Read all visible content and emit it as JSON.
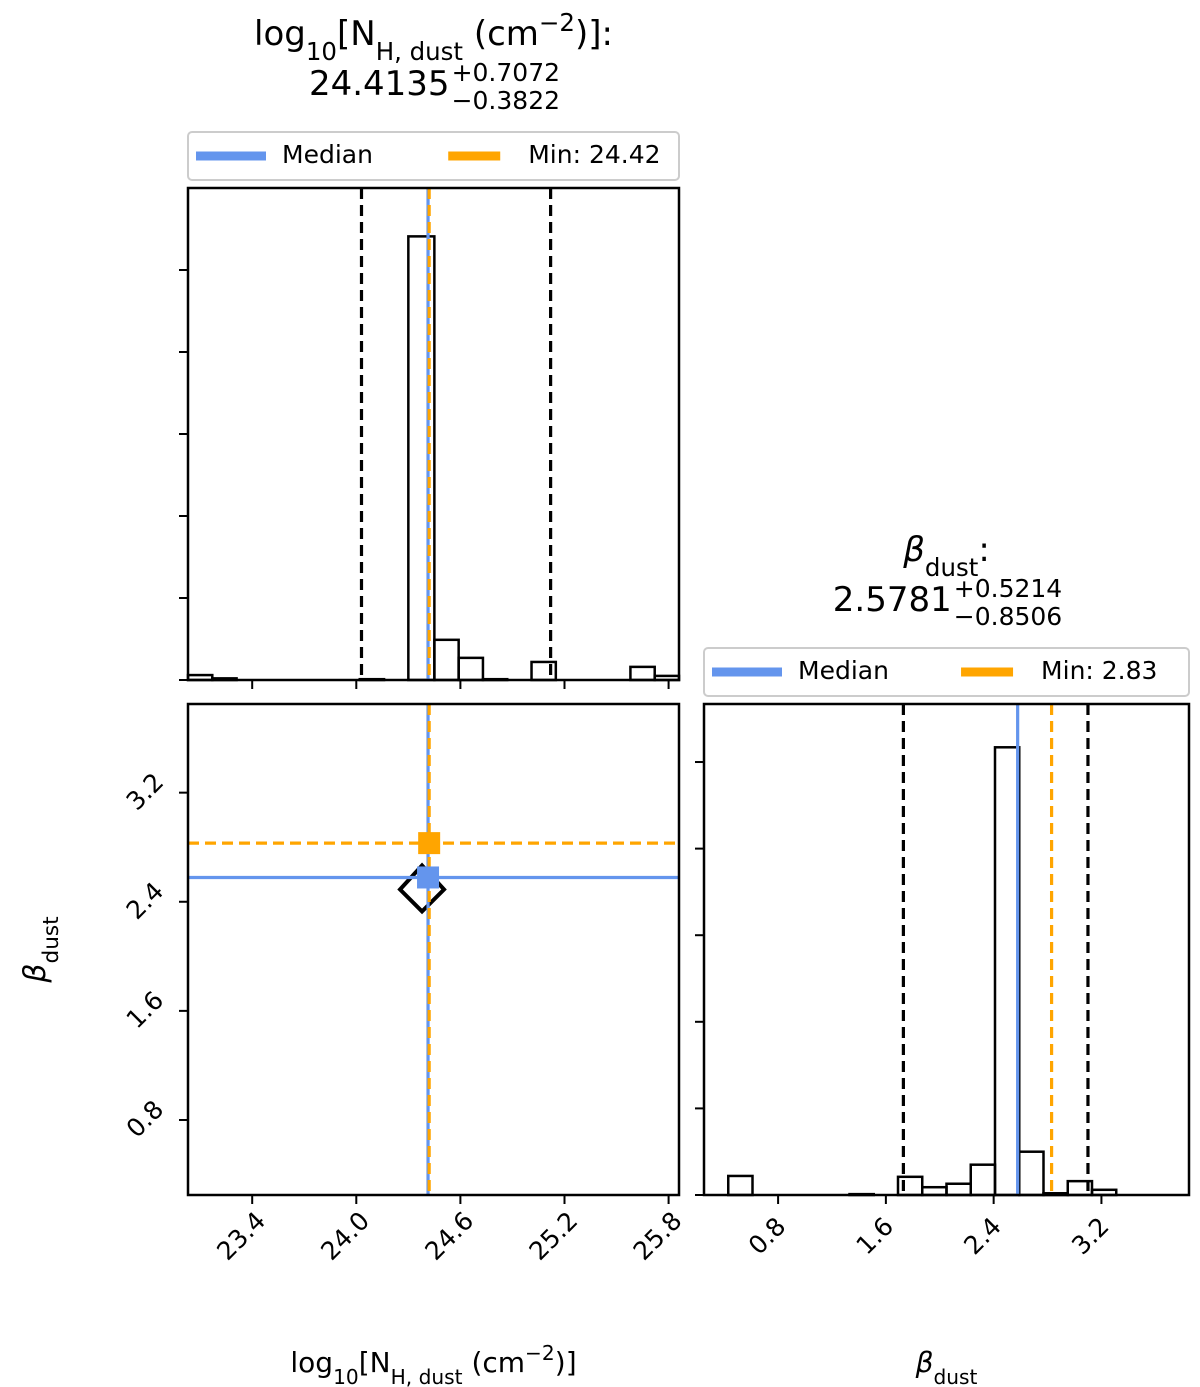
{
  "chart_data": [
    {
      "type": "histogram",
      "title": [
        {
          "text": "log"
        },
        {
          "text": "10",
          "style": "sub"
        },
        {
          "text": "[N"
        },
        {
          "text": "H, dust",
          "style": "sub"
        },
        {
          "text": " (cm"
        },
        {
          "text": "−2",
          "style": "sup"
        },
        {
          "text": ")]:"
        }
      ],
      "title_value": "24.4135",
      "title_plus": "+0.7072",
      "title_minus": "−0.3822",
      "bins": [
        23.03,
        23.17,
        23.31,
        23.45,
        23.6,
        23.74,
        23.88,
        24.02,
        24.16,
        24.3,
        24.45,
        24.59,
        24.73,
        24.87,
        25.01,
        25.15,
        25.29,
        25.44,
        25.58,
        25.72,
        25.86
      ],
      "values": [
        0.06,
        0.02,
        0,
        0,
        0,
        0,
        0,
        0.01,
        0,
        5.41,
        0.49,
        0.27,
        0.01,
        0,
        0.22,
        0,
        0,
        0,
        0.16,
        0.05
      ],
      "color": "#000000",
      "xlim": [
        23.03,
        25.86
      ],
      "xticks": [
        23.4,
        {
          "value": 24,
          "label": "24.0"
        },
        24.6,
        25.2,
        25.8
      ],
      "ylim": [
        0,
        6
      ],
      "yticks": [
        0,
        1,
        2,
        3,
        4,
        5
      ],
      "quantile_lines": [
        24.03,
        25.12
      ],
      "series": [
        {
          "name": "Median",
          "color": "#6495ED",
          "value": 24.4135
        },
        {
          "name": "Min: 24.42",
          "color": "#FFA500",
          "value": 24.42
        }
      ]
    },
    {
      "type": "scatter",
      "xlim": [
        23.03,
        25.86
      ],
      "xticks": [
        23.4,
        {
          "value": 24,
          "label": "24.0"
        },
        24.6,
        25.2,
        25.8
      ],
      "ylim": [
        0.25,
        3.85
      ],
      "yticks": [
        0.8,
        1.6,
        2.4,
        3.2
      ],
      "xlabel": [
        {
          "text": "log"
        },
        {
          "text": "10",
          "style": "sub"
        },
        {
          "text": "[N"
        },
        {
          "text": "H, dust",
          "style": "sub"
        },
        {
          "text": " (cm"
        },
        {
          "text": "−2",
          "style": "sup"
        },
        {
          "text": ")]"
        }
      ],
      "ylabel": [
        {
          "text": "β",
          "style": "italic"
        },
        {
          "text": "dust",
          "style": "sub"
        }
      ],
      "series": [
        {
          "name": "Median",
          "color": "#6495ED",
          "x": 24.4135,
          "y": 2.5781
        },
        {
          "name": "Min",
          "color": "#FFA500",
          "x": 24.42,
          "y": 2.83
        }
      ]
    },
    {
      "type": "histogram",
      "title": [
        {
          "text": "β",
          "style": "italic"
        },
        {
          "text": "dust",
          "style": "sub"
        },
        {
          "text": ":"
        }
      ],
      "title_value": "2.5781",
      "title_plus": "+0.5214",
      "title_minus": "−0.8506",
      "bins": [
        0.25,
        0.43,
        0.61,
        0.79,
        0.97,
        1.15,
        1.33,
        1.51,
        1.69,
        1.87,
        2.05,
        2.23,
        2.41,
        2.59,
        2.77,
        2.95,
        3.13,
        3.31,
        3.49,
        3.67,
        3.85
      ],
      "values": [
        0,
        0.22,
        0,
        0,
        0,
        0,
        0.01,
        0,
        0.21,
        0.09,
        0.13,
        0.35,
        5.17,
        0.5,
        0.02,
        0.16,
        0.06,
        0,
        0,
        0
      ],
      "color": "#000000",
      "xlim": [
        0.25,
        3.85
      ],
      "xticks": [
        0.8,
        1.6,
        2.4,
        3.2
      ],
      "ylim": [
        0,
        5.67
      ],
      "yticks": [
        0,
        1,
        2,
        3,
        4,
        5
      ],
      "xlabel": [
        {
          "text": "β",
          "style": "italic"
        },
        {
          "text": "dust",
          "style": "sub"
        }
      ],
      "quantile_lines": [
        1.73,
        3.1
      ],
      "series": [
        {
          "name": "Median",
          "color": "#6495ED",
          "value": 2.5781
        },
        {
          "name": "Min: 2.83",
          "color": "#FFA500",
          "value": 2.83
        }
      ]
    }
  ]
}
